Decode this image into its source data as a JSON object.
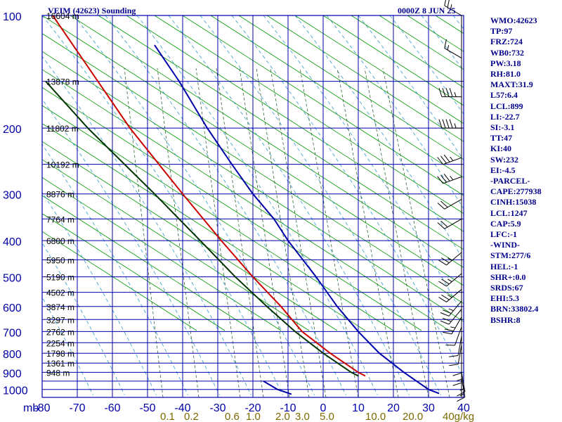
{
  "title_left": "VEIM (42623) Sounding",
  "title_right": "0000Z  8 JUN 25",
  "indices": [
    "WMO:42623",
    "TP:97",
    "FRZ:724",
    "WB0:732",
    "PW:3.18",
    "RH:81.0",
    "MAXT:31.9",
    "L57:6.4",
    "LCL:899",
    "LI:-22.7",
    "SI:-3.1",
    "TT:47",
    "KI:40",
    "SW:232",
    "EI:-4.5",
    "-PARCEL-",
    "CAPE:277938",
    "CINH:15038",
    "LCL:1247",
    "CAP:5.9",
    "LFC:-1",
    "-WIND-",
    "STM:277/6",
    "HEL:-1",
    "SHR+:0.0",
    "SRDS:67",
    "EHI:5.3",
    "BRN:33802.4",
    "BSHR:8"
  ],
  "chart_data": {
    "type": "skew-t sounding",
    "pressure_axis": {
      "unit": "mb",
      "ticks": [
        100,
        200,
        300,
        400,
        500,
        600,
        700,
        800,
        900,
        1000
      ]
    },
    "temperature_axis": {
      "unit": "C",
      "ticks": [
        -80,
        -70,
        -60,
        -50,
        -40,
        -30,
        -20,
        -10,
        0,
        10,
        20,
        30,
        40
      ],
      "labels": [
        "-80",
        "-70",
        "-60",
        "-50",
        "-40",
        "-30",
        "-20",
        "-10",
        "0",
        "10",
        "20",
        "30",
        "40"
      ]
    },
    "height_labels": [
      {
        "p": 100,
        "h": "16604 m"
      },
      {
        "p": 150,
        "h": "13878 m"
      },
      {
        "p": 200,
        "h": "11802 m"
      },
      {
        "p": 250,
        "h": "10192 m"
      },
      {
        "p": 300,
        "h": "8876 m"
      },
      {
        "p": 350,
        "h": "7764 m"
      },
      {
        "p": 400,
        "h": "6800 m"
      },
      {
        "p": 450,
        "h": "5950 m"
      },
      {
        "p": 500,
        "h": "5190 m"
      },
      {
        "p": 550,
        "h": "4502 m"
      },
      {
        "p": 600,
        "h": "3874 m"
      },
      {
        "p": 650,
        "h": "3297 m"
      },
      {
        "p": 700,
        "h": "2762 m"
      },
      {
        "p": 750,
        "h": "2254 m"
      },
      {
        "p": 800,
        "h": "1798 m"
      },
      {
        "p": 850,
        "h": "1361 m"
      },
      {
        "p": 900,
        "h": "948 m"
      }
    ],
    "mixing_ratio_labels": [
      "0.1",
      "0.2",
      "0.6",
      "1.0",
      "2.0",
      "3.0",
      "5.0",
      "10.0",
      "20.0",
      "40g/kg"
    ],
    "series": [
      {
        "color": "#cc0000",
        "points": [
          [
            100,
            -77
          ],
          [
            200,
            -55
          ],
          [
            300,
            -40
          ],
          [
            400,
            -29
          ],
          [
            500,
            -20
          ],
          [
            600,
            -12
          ],
          [
            700,
            -6
          ],
          [
            800,
            2
          ],
          [
            900,
            10
          ],
          [
            920,
            12
          ]
        ]
      },
      {
        "color": "#003300",
        "points": [
          [
            150,
            -79
          ],
          [
            200,
            -67
          ],
          [
            300,
            -48
          ],
          [
            400,
            -35
          ],
          [
            500,
            -25
          ],
          [
            600,
            -16
          ],
          [
            700,
            -8
          ],
          [
            800,
            0
          ],
          [
            900,
            8
          ],
          [
            920,
            10
          ]
        ]
      },
      {
        "color": "#0000aa",
        "points": [
          [
            120,
            -48
          ],
          [
            150,
            -41
          ],
          [
            200,
            -33
          ],
          [
            250,
            -26
          ],
          [
            300,
            -20
          ],
          [
            350,
            -14
          ],
          [
            400,
            -10
          ],
          [
            500,
            -2
          ],
          [
            600,
            4
          ],
          [
            700,
            10
          ],
          [
            800,
            16
          ],
          [
            900,
            23
          ],
          [
            1000,
            30
          ],
          [
            1025,
            33
          ]
        ]
      },
      {
        "color": "#0000aa",
        "points": [
          [
            950,
            -17
          ],
          [
            1000,
            -13
          ],
          [
            1030,
            -9
          ]
        ]
      }
    ],
    "wind_barbs": [
      {
        "p": 100,
        "dir": 300,
        "spd": 15
      },
      {
        "p": 130,
        "dir": 300,
        "spd": 5
      },
      {
        "p": 165,
        "dir": 270,
        "spd": 35
      },
      {
        "p": 200,
        "dir": 270,
        "spd": 35
      },
      {
        "p": 240,
        "dir": 250,
        "spd": 25
      },
      {
        "p": 270,
        "dir": 250,
        "spd": 25
      },
      {
        "p": 310,
        "dir": 240,
        "spd": 20
      },
      {
        "p": 350,
        "dir": 240,
        "spd": 20
      },
      {
        "p": 430,
        "dir": 230,
        "spd": 15
      },
      {
        "p": 490,
        "dir": 230,
        "spd": 15
      },
      {
        "p": 540,
        "dir": 230,
        "spd": 15
      },
      {
        "p": 580,
        "dir": 220,
        "spd": 15
      },
      {
        "p": 610,
        "dir": 220,
        "spd": 20
      },
      {
        "p": 640,
        "dir": 210,
        "spd": 15
      },
      {
        "p": 680,
        "dir": 200,
        "spd": 10
      },
      {
        "p": 720,
        "dir": 190,
        "spd": 10
      },
      {
        "p": 760,
        "dir": 190,
        "spd": 10
      },
      {
        "p": 800,
        "dir": 180,
        "spd": 10
      },
      {
        "p": 850,
        "dir": 180,
        "spd": 5
      },
      {
        "p": 900,
        "dir": 170,
        "spd": 5
      },
      {
        "p": 930,
        "dir": 170,
        "spd": 5
      }
    ],
    "colors": {
      "frame": "#0000aa",
      "dry_adiabat": "#009900",
      "moist_adiabat": "#3399cc",
      "mixing_ratio": "#336633",
      "mixing_label": "#7a6a00",
      "axis_text": "#0000aa"
    }
  }
}
